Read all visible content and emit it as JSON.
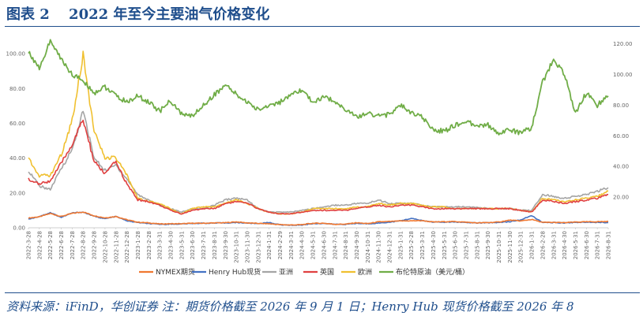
{
  "header": {
    "figure_title": "图表 2　 2022 年至今主要油气价格变化"
  },
  "footer": {
    "source": "资料来源：iFinD，华创证券  注：期货价格截至 2026 年 9 月 1 日；Henry Hub 现货价格截至 2026 年 8"
  },
  "colors": {
    "nymex": "#f07830",
    "henry": "#4472c4",
    "asia": "#a5a5a5",
    "uk": "#e04040",
    "europe": "#f0c030",
    "brent": "#70ad47",
    "rule": "#1f4e8c"
  },
  "chart_data": {
    "type": "line",
    "title": "",
    "xlabel": "",
    "ylabel": "",
    "ylim": [
      0,
      110
    ],
    "y2lim": [
      0,
      125
    ],
    "yticks": [
      "0.00",
      "20.00",
      "40.00",
      "60.00",
      "80.00",
      "100.00"
    ],
    "yticks_right": [
      "20.00",
      "40.00",
      "60.00",
      "80.00",
      "100.00",
      "120.00"
    ],
    "x": [
      "2022-3-28",
      "2022-4-28",
      "2022-5-28",
      "2022-6-28",
      "2022-7-28",
      "2022-8-28",
      "2022-9-28",
      "2022-10-28",
      "2022-11-28",
      "2022-12-28",
      "2023-1-28",
      "2023-2-28",
      "2023-3-31",
      "2023-4-30",
      "2023-5-31",
      "2023-6-30",
      "2023-7-31",
      "2023-8-31",
      "2023-9-30",
      "2023-10-31",
      "2023-11-30",
      "2023-12-31",
      "2024-1-31",
      "2024-2-29",
      "2024-3-31",
      "2024-4-30",
      "2024-5-31",
      "2024-6-30",
      "2024-7-31",
      "2024-8-31",
      "2024-9-30",
      "2024-10-31",
      "2024-11-30",
      "2024-12-31",
      "2025-1-31",
      "2025-2-28",
      "2025-3-31",
      "2025-4-30",
      "2025-5-31",
      "2025-6-30",
      "2025-7-31",
      "2025-8-31",
      "2025-9-30",
      "2025-10-31",
      "2025-11-30",
      "2025-12-31",
      "2026-1-31",
      "2026-2-28",
      "2026-3-31",
      "2026-4-30",
      "2026-5-31",
      "2026-6-30",
      "2026-7-31",
      "2026-8-31"
    ],
    "legend_position": "bottom",
    "series": [
      {
        "name": "NYMEX期货",
        "axis": "left",
        "color_key": "nymex",
        "values": [
          5.6,
          6.3,
          8.2,
          6.5,
          8.3,
          9.1,
          6.9,
          5.7,
          6.5,
          4.6,
          3.2,
          2.8,
          2.2,
          2.3,
          2.3,
          2.6,
          2.6,
          2.8,
          2.9,
          3.4,
          2.8,
          2.5,
          2.3,
          1.8,
          1.6,
          1.8,
          2.6,
          2.6,
          2.0,
          2.1,
          2.9,
          2.4,
          3.4,
          3.6,
          3.9,
          4.0,
          4.1,
          3.3,
          3.5,
          3.6,
          3.2,
          2.8,
          3.0,
          3.3,
          4.4,
          3.9,
          4.8,
          3.1,
          3.1,
          2.9,
          3.3,
          3.4,
          3.5,
          3.6
        ]
      },
      {
        "name": "Henry Hub现货",
        "axis": "left",
        "color_key": "henry",
        "values": [
          5.0,
          6.5,
          8.7,
          6.0,
          8.5,
          9.0,
          6.6,
          5.2,
          6.5,
          4.0,
          3.0,
          2.4,
          2.0,
          2.1,
          2.2,
          2.5,
          2.6,
          2.7,
          2.8,
          3.0,
          2.7,
          2.4,
          3.0,
          1.7,
          1.5,
          1.6,
          2.4,
          2.5,
          2.0,
          2.0,
          2.5,
          2.3,
          2.7,
          3.2,
          4.0,
          5.4,
          4.1,
          3.3,
          3.2,
          3.3,
          3.0,
          2.8,
          2.9,
          3.1,
          3.5,
          4.5,
          7.0,
          3.0,
          3.0,
          2.8,
          3.1,
          3.2,
          3.2,
          3.0
        ]
      },
      {
        "name": "亚洲",
        "axis": "left",
        "color_key": "asia",
        "values": [
          33,
          24,
          22,
          34,
          45,
          67,
          40,
          33,
          36,
          28,
          19,
          16,
          13,
          11,
          9,
          11,
          11,
          13,
          16,
          17,
          16,
          11,
          9,
          9,
          9,
          10,
          11,
          12,
          13,
          13,
          14,
          14,
          16,
          14,
          14,
          14,
          13,
          12,
          12,
          12,
          12,
          12,
          11,
          11,
          11,
          10,
          10,
          19,
          18,
          17,
          18,
          19,
          21,
          23
        ]
      },
      {
        "name": "英国",
        "axis": "left",
        "color_key": "uk",
        "values": [
          28,
          25,
          27,
          37,
          48,
          62,
          38,
          31,
          38,
          25,
          16,
          15,
          13,
          10,
          8,
          10,
          11,
          11,
          14,
          15,
          14,
          11,
          9,
          8,
          8,
          9,
          10,
          10,
          10,
          10,
          11,
          12,
          13,
          12,
          13,
          13,
          12,
          11,
          11,
          11,
          11,
          11,
          11,
          11,
          11,
          10,
          9,
          16,
          15,
          14,
          15,
          16,
          17,
          19
        ]
      },
      {
        "name": "欧洲",
        "axis": "left",
        "color_key": "europe",
        "values": [
          40,
          30,
          30,
          42,
          62,
          100,
          55,
          40,
          40,
          30,
          17,
          15,
          14,
          11,
          8,
          11,
          12,
          12,
          14,
          16,
          14,
          11,
          9,
          8,
          8,
          9,
          11,
          11,
          11,
          11,
          12,
          12,
          14,
          13,
          14,
          14,
          13,
          12,
          12,
          11,
          11,
          11,
          11,
          11,
          11,
          10,
          9,
          17,
          16,
          15,
          16,
          17,
          18,
          21
        ]
      },
      {
        "name": "布伦特原油（美元/桶）",
        "axis": "right",
        "color_key": "brent",
        "values": [
          115,
          104,
          122,
          110,
          100,
          96,
          88,
          92,
          86,
          82,
          86,
          82,
          76,
          83,
          74,
          73,
          80,
          87,
          93,
          87,
          82,
          77,
          80,
          82,
          86,
          90,
          82,
          85,
          83,
          77,
          72,
          75,
          73,
          74,
          80,
          75,
          72,
          64,
          63,
          67,
          69,
          67,
          67,
          62,
          64,
          62,
          65,
          95,
          110,
          100,
          75,
          88,
          80,
          86
        ]
      }
    ]
  }
}
